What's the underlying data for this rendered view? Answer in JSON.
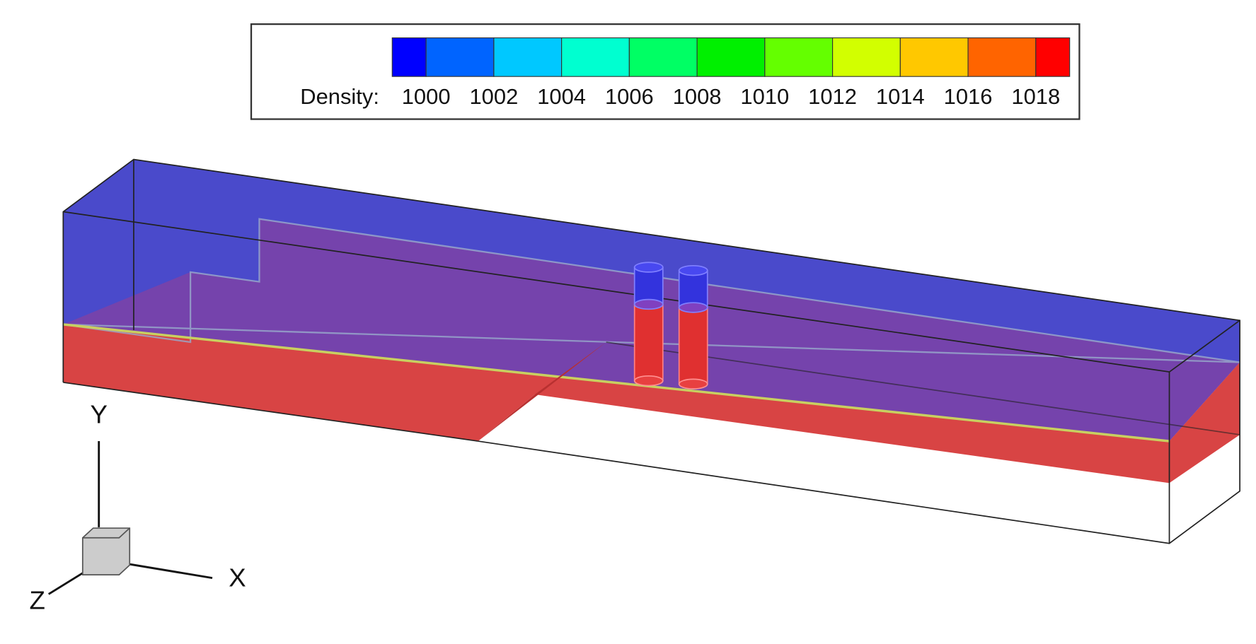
{
  "legend": {
    "title": "Density:",
    "ticks": [
      1000,
      1002,
      1004,
      1006,
      1008,
      1010,
      1012,
      1014,
      1016,
      1018
    ],
    "colors": [
      "#0000ff",
      "#0064ff",
      "#00c8ff",
      "#00ffd0",
      "#00ff64",
      "#00f000",
      "#64ff00",
      "#d2ff00",
      "#ffc800",
      "#ff6400",
      "#ff0000"
    ]
  },
  "axes": {
    "x": "X",
    "y": "Y",
    "z": "Z"
  }
}
